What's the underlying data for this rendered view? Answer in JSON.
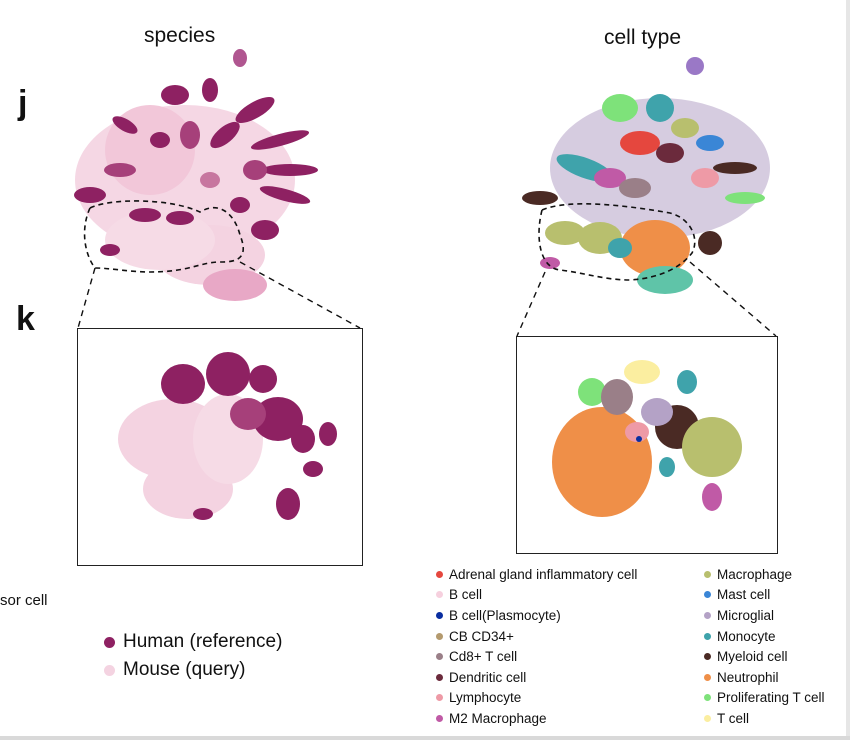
{
  "panels": {
    "species_title": "species",
    "celltype_title": "cell type",
    "letter_j": "j",
    "letter_k": "k",
    "cut_text": "sor cell"
  },
  "species_legend": {
    "items": [
      {
        "label": "Human (reference)",
        "color": "#8e2162"
      },
      {
        "label": "Mouse (query)",
        "color": "#f4d3e1"
      }
    ]
  },
  "celltype_legend": {
    "left": [
      {
        "label": "Adrenal gland inflammatory cell",
        "color": "#e5473e"
      },
      {
        "label": "B cell",
        "color": "#f6d0de"
      },
      {
        "label": "B cell(Plasmocyte)",
        "color": "#0a2ea0"
      },
      {
        "label": "CB CD34+",
        "color": "#b49a6e"
      },
      {
        "label": "Cd8+ T cell",
        "color": "#9a7f88"
      },
      {
        "label": "Dendritic cell",
        "color": "#6b2a3c"
      },
      {
        "label": "Lymphocyte",
        "color": "#ee9aa6"
      },
      {
        "label": "M2 Macrophage",
        "color": "#c05aa6"
      }
    ],
    "right": [
      {
        "label": "Macrophage",
        "color": "#b8bf6e"
      },
      {
        "label": "Mast cell",
        "color": "#3a86d6"
      },
      {
        "label": "Microglial",
        "color": "#b4a2c6"
      },
      {
        "label": "Monocyte",
        "color": "#3fa3ab"
      },
      {
        "label": "Myeloid cell",
        "color": "#4a2a24"
      },
      {
        "label": "Neutrophil",
        "color": "#ef8f48"
      },
      {
        "label": "Proliferating T cell",
        "color": "#7ee27a"
      },
      {
        "label": "T cell",
        "color": "#fbeea0"
      }
    ]
  },
  "colors": {
    "human": "#8e2162",
    "mouse": "#f4d3e1"
  }
}
